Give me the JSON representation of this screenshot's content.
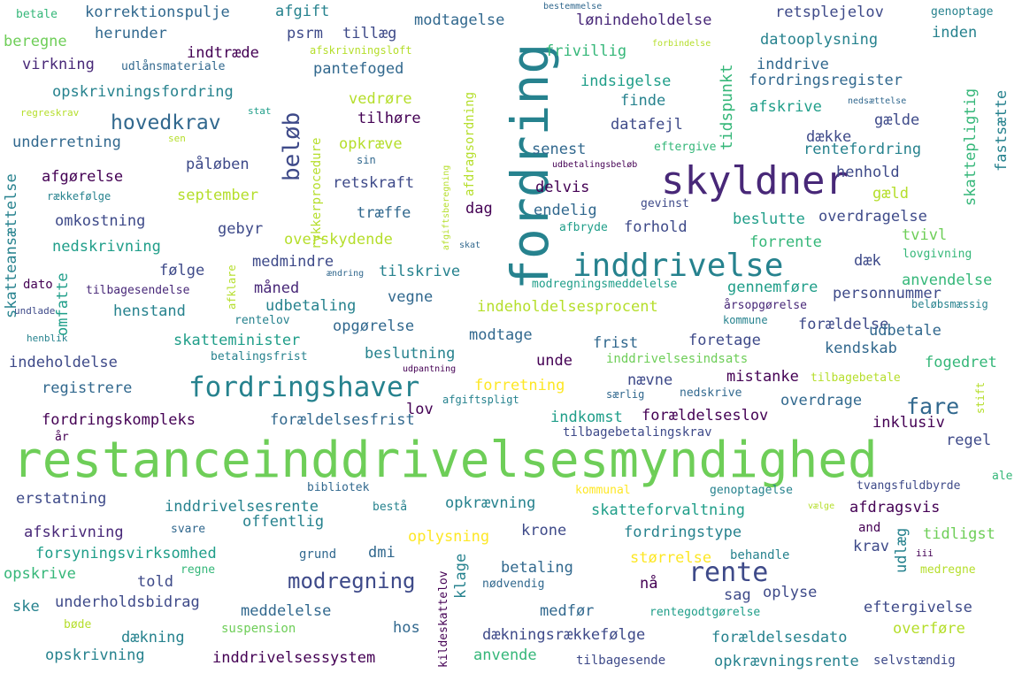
{
  "palette": {
    "c1": "#440154",
    "c2": "#482878",
    "c3": "#3e4a89",
    "c4": "#31688e",
    "c5": "#26828e",
    "c6": "#1f9e89",
    "c7": "#35b779",
    "c8": "#6ece58",
    "c9": "#b5de2b",
    "c10": "#fde725"
  },
  "words": {
    "restanceinddrivelsesmyndighed": "restanceinddrivelsesmyndighed",
    "fordring": "fordring",
    "skyldner": "skyldner",
    "inddrivelse": "inddrivelse",
    "fordringshaver": "fordringshaver",
    "rente": "rente",
    "modregning": "modregning",
    "hovedkrav": "hovedkrav",
    "fare": "fare",
    "beloeb": "beløb",
    "tidspunkt": "tidspunkt",
    "betale": "betale",
    "korrektionspulje": "korrektionspulje",
    "afgift": "afgift",
    "bestemmelse": "bestemmelse",
    "modtagelse": "modtagelse",
    "loenindeholdelse": "lønindeholdelse",
    "retsplejelov": "retsplejelov",
    "genoptage": "genoptage",
    "beregne": "beregne",
    "herunder": "herunder",
    "psrm": "psrm",
    "tillaeg": "tillæg",
    "frivillig": "frivillig",
    "forbindelse": "forbindelse",
    "datooplysning": "datooplysning",
    "inden": "inden",
    "indtraede": "indtræde",
    "afskrivningsloft": "afskrivningsloft",
    "virkning": "virkning",
    "udlaansmateriale": "udlånsmateriale",
    "pantefoged": "pantefoged",
    "inddrive": "inddrive",
    "fordringsregister": "fordringsregister",
    "opskrivningsfordring": "opskrivningsfordring",
    "indsigelse": "indsigelse",
    "vedroere": "vedrøre",
    "finde": "finde",
    "afskrive": "afskrive",
    "nedsaettelse": "nedsættelse",
    "regreskrav": "regreskrav",
    "stat": "stat",
    "tilhoere": "tilhøre",
    "datafejl": "datafejl",
    "gaelde": "gælde",
    "sen": "sen",
    "underretning": "underretning",
    "opkraeve": "opkræve",
    "senest": "senest",
    "eftergive": "eftergive",
    "daekke": "dække",
    "rentefordring": "rentefordring",
    "sin": "sin",
    "udbetalingsbeloeb": "udbetalingsbeløb",
    "paaloeben": "påløben",
    "afgoerelse": "afgørelse",
    "retskraft": "retskraft",
    "henhold": "henhold",
    "raekkefoelge": "rækkefølge",
    "september": "september",
    "delvis": "delvis",
    "gaeld": "gæld",
    "dag": "dag",
    "endelig": "endelig",
    "gevinst": "gevinst",
    "omkostning": "omkostning",
    "traeffe": "træffe",
    "overdragelse": "overdragelse",
    "gebyr": "gebyr",
    "afbryde": "afbryde",
    "forhold": "forhold",
    "beslutte": "beslutte",
    "tvivl": "tvivl",
    "nedskrivning": "nedskrivning",
    "overskydende": "overskydende",
    "skat": "skat",
    "forrente": "forrente",
    "foelge": "følge",
    "medmindre": "medmindre",
    "tilskrive": "tilskrive",
    "daek": "dæk",
    "lovgivning": "lovgivning",
    "dato": "dato",
    "tilbagesendelse": "tilbagesendelse",
    "aendring": "ændring",
    "maaned": "måned",
    "modregningsmeddelelse": "modregningsmeddelelse",
    "gennemfoere": "gennemføre",
    "anvendelse": "anvendelse",
    "undlade": "undlade",
    "vegne": "vegne",
    "personnummer": "personnummer",
    "henstand": "henstand",
    "udbetaling": "udbetaling",
    "indeholdelsesprocent": "indeholdelsesprocent",
    "aarsopgoerelse": "årsopgørelse",
    "beloebsmaessig": "beløbsmæssig",
    "rentelov": "rentelov",
    "kommune": "kommune",
    "foraeldelse": "forældelse",
    "henblik": "henblik",
    "opgoerelse": "opgørelse",
    "modtage": "modtage",
    "udbetale": "udbetale",
    "skatteminister": "skatteminister",
    "frist": "frist",
    "foretage": "foretage",
    "kendskab": "kendskab",
    "indeholdelse": "indeholdelse",
    "betalingsfrist": "betalingsfrist",
    "beslutning": "beslutning",
    "unde": "unde",
    "inddrivelsesindsats": "inddrivelsesindsats",
    "fogedret": "fogedret",
    "udpantning": "udpantning",
    "registrere": "registrere",
    "forretning": "forretning",
    "naevne": "nævne",
    "mistanke": "mistanke",
    "tilbagebetale": "tilbagebetale",
    "saerlig": "særlig",
    "nedskrive": "nedskrive",
    "afgiftspligt": "afgiftspligt",
    "lov": "lov",
    "fordringskompleks": "fordringskompleks",
    "foraeldelsesfrist": "forældelsesfrist",
    "indkomst": "indkomst",
    "foraeldelseslov": "forældelseslov",
    "overdrage": "overdrage",
    "inklusiv": "inklusiv",
    "aar": "år",
    "tilbagebetalingskrav": "tilbagebetalingskrav",
    "regel": "regel",
    "bibliotek": "bibliotek",
    "kommunal": "kommunal",
    "genoptagelse": "genoptagelse",
    "tvangsfuldbyrde": "tvangsfuldbyrde",
    "ale": "ale",
    "erstatning": "erstatning",
    "inddrivelsesrente": "inddrivelsesrente",
    "bestaa": "bestå",
    "opkraevning": "opkrævning",
    "skatteforvaltning": "skatteforvaltning",
    "afdragsvis": "afdragsvis",
    "vaelge": "vælge",
    "afskrivning": "afskrivning",
    "svare": "svare",
    "offentlig": "offentlig",
    "oplysning": "oplysning",
    "krone": "krone",
    "fordringstype": "fordringstype",
    "and": "and",
    "tidligst": "tidligst",
    "krav": "krav",
    "forsyningsvirksomhed": "forsyningsvirksomhed",
    "dmi": "dmi",
    "grund": "grund",
    "stoerrelse": "størrelse",
    "behandle": "behandle",
    "iii": "iii",
    "opskrive": "opskrive",
    "regne": "regne",
    "told": "told",
    "betaling": "betaling",
    "noedvendig": "nødvendig",
    "naa": "nå",
    "medregne": "medregne",
    "sag": "sag",
    "oplyse": "oplyse",
    "ske": "ske",
    "underholdsbidrag": "underholdsbidrag",
    "meddelelse": "meddelelse",
    "medfoer": "medfør",
    "rentegodtgoerelse": "rentegodtgørelse",
    "eftergivelse": "eftergivelse",
    "boede": "bøde",
    "suspension": "suspension",
    "hos": "hos",
    "overfoere": "overføre",
    "daekning": "dækning",
    "daekningsraekkefoelge": "dækningsrækkefølge",
    "foraeldelsesdato": "forældelsesdato",
    "opskrivning": "opskrivning",
    "inddrivelsessystem": "inddrivelsessystem",
    "anvende": "anvende",
    "tilbagesende": "tilbagesende",
    "opkraevningsrente": "opkrævningsrente",
    "selvstaendig": "selvstændig",
    "afdragsordning": "afdragsordning",
    "rykkerprocedure": "rykkerprocedure",
    "afgiftsberegning": "afgiftsberegning",
    "skatteansaettelse": "skatteansættelse",
    "omfatte": "omfatte",
    "afklare": "afklare",
    "fastsaette": "fastsætte",
    "skattepligtig": "skattepligtig",
    "klage": "klage",
    "kildeskattelov": "kildeskattelov",
    "udlaeg": "udlæg",
    "stift": "stift"
  }
}
